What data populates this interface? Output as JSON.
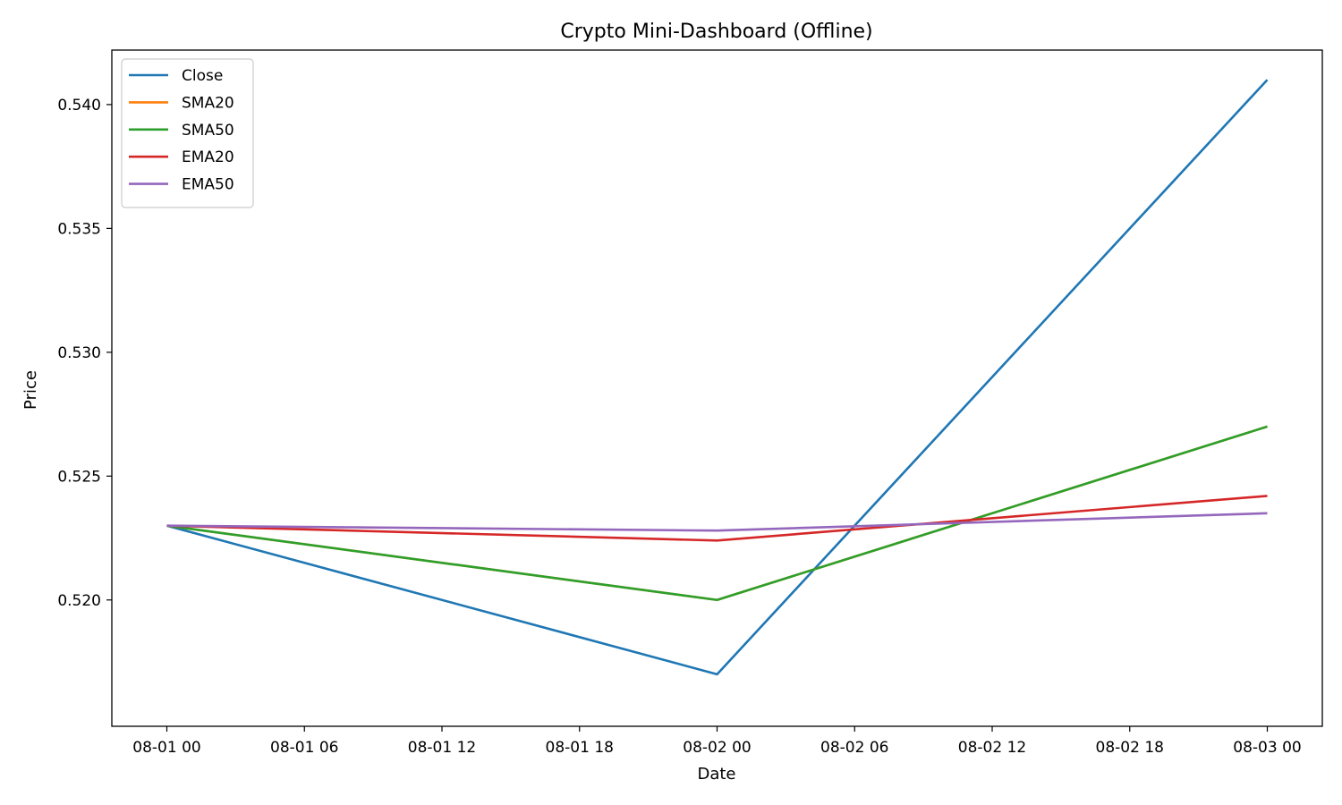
{
  "chart_data": {
    "type": "line",
    "title": "Crypto Mini-Dashboard (Offline)",
    "xlabel": "Date",
    "ylabel": "Price",
    "x": [
      "08-01 00",
      "08-02 00",
      "08-03 00"
    ],
    "x_hours": [
      0,
      24,
      48
    ],
    "xlim_hours": [
      -2.4,
      50.4
    ],
    "xticks": [
      {
        "hours": 0,
        "label": "08-01 00"
      },
      {
        "hours": 6,
        "label": "08-01 06"
      },
      {
        "hours": 12,
        "label": "08-01 12"
      },
      {
        "hours": 18,
        "label": "08-01 18"
      },
      {
        "hours": 24,
        "label": "08-02 00"
      },
      {
        "hours": 30,
        "label": "08-02 06"
      },
      {
        "hours": 36,
        "label": "08-02 12"
      },
      {
        "hours": 42,
        "label": "08-02 18"
      },
      {
        "hours": 48,
        "label": "08-03 00"
      }
    ],
    "ylim": [
      0.5149,
      0.5422
    ],
    "yticks": [
      {
        "value": 0.52,
        "label": "0.520"
      },
      {
        "value": 0.525,
        "label": "0.525"
      },
      {
        "value": 0.53,
        "label": "0.530"
      },
      {
        "value": 0.535,
        "label": "0.535"
      },
      {
        "value": 0.54,
        "label": "0.540"
      }
    ],
    "grid": false,
    "legend_position": "top-left",
    "series": [
      {
        "name": "Close",
        "color": "#1f77b4",
        "values": [
          0.523,
          0.517,
          0.541
        ]
      },
      {
        "name": "SMA20",
        "color": "#ff7f0e",
        "values": [
          0.523,
          0.52,
          0.527
        ]
      },
      {
        "name": "SMA50",
        "color": "#2ca02c",
        "values": [
          0.523,
          0.52,
          0.527
        ]
      },
      {
        "name": "EMA20",
        "color": "#d62728",
        "values": [
          0.523,
          0.5224,
          0.5242
        ]
      },
      {
        "name": "EMA50",
        "color": "#9467bd",
        "values": [
          0.523,
          0.5228,
          0.5235
        ]
      }
    ]
  }
}
